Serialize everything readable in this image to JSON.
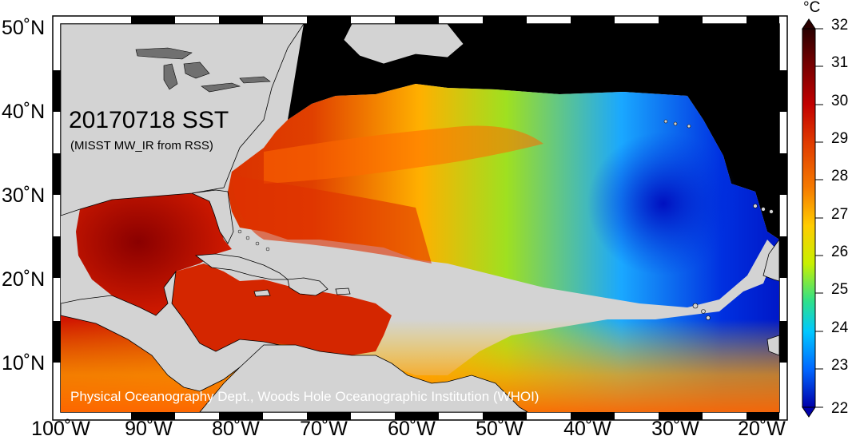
{
  "map": {
    "title": "20170718 SST",
    "subtitle": "(MISST MW_IR from RSS)",
    "credit": "Physical Oceanography Dept., Woods Hole Oceanographic Institution (WHOI)",
    "lat_labels": [
      "50˚N",
      "40˚N",
      "30˚N",
      "20˚N",
      "10˚N"
    ],
    "lon_labels": [
      "100˚W",
      "90˚W",
      "80˚W",
      "70˚W",
      "60˚W",
      "50˚W",
      "40˚W",
      "30˚W",
      "20˚W"
    ],
    "land_color": "#d3d3d3",
    "no_data_color": "#000000"
  },
  "colorbar": {
    "unit": "°C",
    "ticks": [
      "32",
      "31",
      "30",
      "29",
      "28",
      "27",
      "26",
      "25",
      "24",
      "23",
      "22"
    ],
    "min": 22,
    "max": 32,
    "colors": [
      "#2a0000",
      "#6b0000",
      "#c20000",
      "#e03a00",
      "#f57a00",
      "#ffcc00",
      "#c8f000",
      "#2ee08a",
      "#00c8ff",
      "#0066ff",
      "#0000aa"
    ]
  }
}
